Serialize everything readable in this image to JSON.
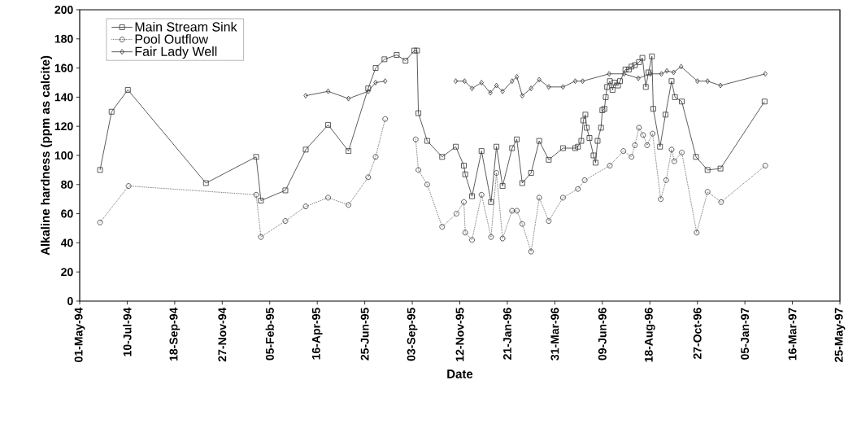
{
  "chart_data": {
    "type": "line",
    "xlabel": "Date",
    "ylabel": "Alkaline hardness (ppm as calcite)",
    "xlim": [
      "1994-05-01",
      "1997-05-25"
    ],
    "ylim": [
      0,
      200
    ],
    "yticks": [
      0,
      20,
      40,
      60,
      80,
      100,
      120,
      140,
      160,
      180,
      200
    ],
    "xticks": [
      {
        "value": "1994-05-01",
        "label": "01-May-94"
      },
      {
        "value": "1994-07-10",
        "label": "10-Jul-94"
      },
      {
        "value": "1994-09-18",
        "label": "18-Sep-94"
      },
      {
        "value": "1994-11-27",
        "label": "27-Nov-94"
      },
      {
        "value": "1995-02-05",
        "label": "05-Feb-95"
      },
      {
        "value": "1995-04-16",
        "label": "16-Apr-95"
      },
      {
        "value": "1995-06-25",
        "label": "25-Jun-95"
      },
      {
        "value": "1995-09-03",
        "label": "03-Sep-95"
      },
      {
        "value": "1995-11-12",
        "label": "12-Nov-95"
      },
      {
        "value": "1996-01-21",
        "label": "21-Jan-96"
      },
      {
        "value": "1996-03-31",
        "label": "31-Mar-96"
      },
      {
        "value": "1996-06-09",
        "label": "09-Jun-96"
      },
      {
        "value": "1996-08-18",
        "label": "18-Aug-96"
      },
      {
        "value": "1996-10-27",
        "label": "27-Oct-96"
      },
      {
        "value": "1997-01-05",
        "label": "05-Jan-97"
      },
      {
        "value": "1997-03-16",
        "label": "16-Mar-97"
      },
      {
        "value": "1997-05-25",
        "label": "25-May-97"
      }
    ],
    "legend": "top left",
    "grid": false,
    "series": [
      {
        "name": "Main Stream Sink",
        "color": "#333333",
        "marker": "square",
        "line_style": "solid",
        "x": [
          "1994-05-31",
          "1994-06-17",
          "1994-07-11",
          "1994-11-03",
          "1995-01-16",
          "1995-01-23",
          "1995-02-28",
          "1995-03-30",
          "1995-05-02",
          "1995-06-01",
          "1995-06-30",
          "1995-07-11",
          "1995-07-24",
          "1995-08-11",
          "1995-08-24",
          "1995-09-06",
          "1995-09-10",
          "1995-09-12",
          "1995-09-25",
          "1995-10-17",
          "1995-11-06",
          "1995-11-18",
          "1995-11-20",
          "1995-11-30",
          "1995-12-14",
          "1995-12-28",
          "1996-01-05",
          "1996-01-14",
          "1996-01-28",
          "1996-02-04",
          "1996-02-12",
          "1996-02-25",
          "1996-03-08",
          "1996-03-22",
          "1996-04-12",
          "1996-04-30",
          "1996-05-04",
          "1996-05-09",
          "1996-05-12",
          "1996-05-15",
          "1996-05-17",
          "1996-05-21",
          "1996-05-27",
          "1996-05-30",
          "1996-06-02",
          "1996-06-07",
          "1996-06-09",
          "1996-06-12",
          "1996-06-14",
          "1996-06-16",
          "1996-06-20",
          "1996-06-24",
          "1996-06-27",
          "1996-07-02",
          "1996-07-05",
          "1996-07-13",
          "1996-07-18",
          "1996-07-22",
          "1996-07-27",
          "1996-08-02",
          "1996-08-07",
          "1996-08-12",
          "1996-08-16",
          "1996-08-21",
          "1996-08-23",
          "1996-09-02",
          "1996-09-10",
          "1996-09-19",
          "1996-09-24",
          "1996-10-04",
          "1996-10-25",
          "1996-11-11",
          "1996-11-30",
          "1997-02-03"
        ],
        "values": [
          90,
          130,
          145,
          81,
          99,
          69,
          76,
          104,
          121,
          103,
          146,
          160,
          166,
          169,
          165,
          172,
          172,
          129,
          110,
          99,
          106,
          93,
          87,
          72,
          103,
          68,
          106,
          79,
          105,
          111,
          81,
          88,
          110,
          97,
          105,
          105,
          106,
          110,
          124,
          128,
          119,
          112,
          100,
          95,
          110,
          119,
          131,
          132,
          140,
          147,
          151,
          145,
          150,
          148,
          151,
          159,
          159,
          161,
          162,
          164,
          167,
          147,
          157,
          168,
          132,
          106,
          128,
          151,
          140,
          137,
          99,
          90,
          91,
          137
        ]
      },
      {
        "name": "Pool Outflow",
        "color": "#333333",
        "marker": "circle",
        "line_style": "dotted",
        "x": [
          "1994-05-31",
          "1994-07-12",
          "1995-01-16",
          "1995-01-23",
          "1995-02-28",
          "1995-03-30",
          "1995-05-02",
          "1995-06-01",
          "1995-06-30",
          "1995-07-11",
          "1995-07-25",
          "1995-08-15",
          "1995-09-08",
          "1995-09-12",
          "1995-09-25",
          "1995-10-17",
          "1995-11-07",
          "1995-11-18",
          "1995-11-20",
          "1995-11-30",
          "1995-12-14",
          "1995-12-28",
          "1996-01-05",
          "1996-01-14",
          "1996-01-28",
          "1996-02-04",
          "1996-02-12",
          "1996-02-25",
          "1996-03-08",
          "1996-03-22",
          "1996-04-12",
          "1996-05-04",
          "1996-05-14",
          "1996-06-20",
          "1996-07-10",
          "1996-07-22",
          "1996-07-27",
          "1996-08-02",
          "1996-08-08",
          "1996-08-14",
          "1996-08-22",
          "1996-09-03",
          "1996-09-11",
          "1996-09-19",
          "1996-09-23",
          "1996-10-04",
          "1996-10-26",
          "1996-11-11",
          "1996-12-01",
          "1997-02-04"
        ],
        "values": [
          54,
          79,
          73,
          44,
          55,
          65,
          71,
          66,
          85,
          99,
          125,
          null,
          111,
          90,
          80,
          51,
          60,
          68,
          47,
          42,
          73,
          44,
          88,
          43,
          62,
          62,
          53,
          34,
          71,
          55,
          71,
          77,
          83,
          93,
          103,
          99,
          107,
          119,
          114,
          107,
          115,
          70,
          83,
          104,
          96,
          102,
          47,
          75,
          68,
          93
        ]
      },
      {
        "name": "Fair Lady Well",
        "color": "#333333",
        "marker": "diamond",
        "line_style": "solid",
        "x": [
          "1995-03-30",
          "1995-05-02",
          "1995-06-01",
          "1995-06-30",
          "1995-07-11",
          "1995-07-25",
          "1995-09-15",
          "1995-11-06",
          "1995-11-19",
          "1995-11-30",
          "1995-12-14",
          "1995-12-27",
          "1996-01-05",
          "1996-01-14",
          "1996-01-28",
          "1996-02-04",
          "1996-02-12",
          "1996-02-25",
          "1996-03-08",
          "1996-03-22",
          "1996-04-12",
          "1996-04-30",
          "1996-05-11",
          "1996-06-19",
          "1996-07-11",
          "1996-08-01",
          "1996-08-19",
          "1996-09-04",
          "1996-09-12",
          "1996-09-22",
          "1996-10-03",
          "1996-10-27",
          "1996-11-11",
          "1996-11-30",
          "1997-02-04"
        ],
        "values": [
          141,
          144,
          139,
          144,
          150,
          151,
          null,
          151,
          151,
          146,
          150,
          143,
          148,
          144,
          151,
          154,
          141,
          146,
          152,
          147,
          147,
          151,
          151,
          156,
          156,
          153,
          156,
          156,
          158,
          157,
          161,
          151,
          151,
          148,
          156
        ]
      }
    ]
  }
}
